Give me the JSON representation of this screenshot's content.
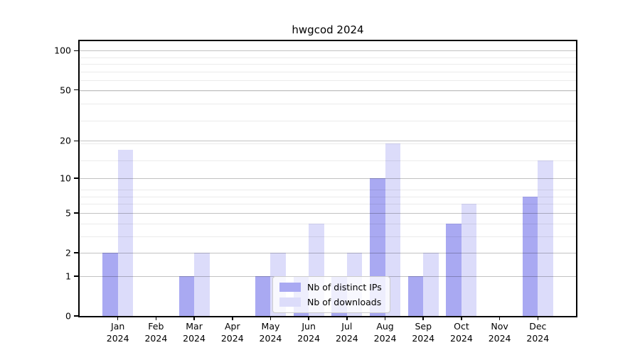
{
  "chart_data": {
    "type": "bar",
    "title": "hwgcod 2024",
    "year": "2024",
    "categories": [
      "Jan 2024",
      "Feb 2024",
      "Mar 2024",
      "Apr 2024",
      "May 2024",
      "Jun 2024",
      "Jul 2024",
      "Aug 2024",
      "Sep 2024",
      "Oct 2024",
      "Nov 2024",
      "Dec 2024"
    ],
    "month_labels": [
      "Jan",
      "Feb",
      "Mar",
      "Apr",
      "May",
      "Jun",
      "Jul",
      "Aug",
      "Sep",
      "Oct",
      "Nov",
      "Dec"
    ],
    "series": [
      {
        "name": "Nb of distinct IPs",
        "color": "#a9a9f2",
        "values": [
          2,
          0,
          1,
          0,
          1,
          1,
          1,
          10,
          1,
          4,
          0,
          7
        ]
      },
      {
        "name": "Nb of downloads",
        "color": "#dcdcfa",
        "values": [
          17,
          0,
          2,
          0,
          2,
          4,
          2,
          19,
          2,
          6,
          0,
          14
        ]
      }
    ],
    "xlabel": "",
    "ylabel": "",
    "yscale": "log1p",
    "y_ticks": [
      0,
      1,
      2,
      5,
      10,
      20,
      50,
      100
    ],
    "y_minor_gridlines": [
      3,
      4,
      6,
      7,
      8,
      14,
      19,
      29,
      39,
      49,
      59,
      69,
      79,
      89
    ],
    "y_top": 118,
    "grid": "on",
    "legend_position": "inside-lower-center"
  }
}
